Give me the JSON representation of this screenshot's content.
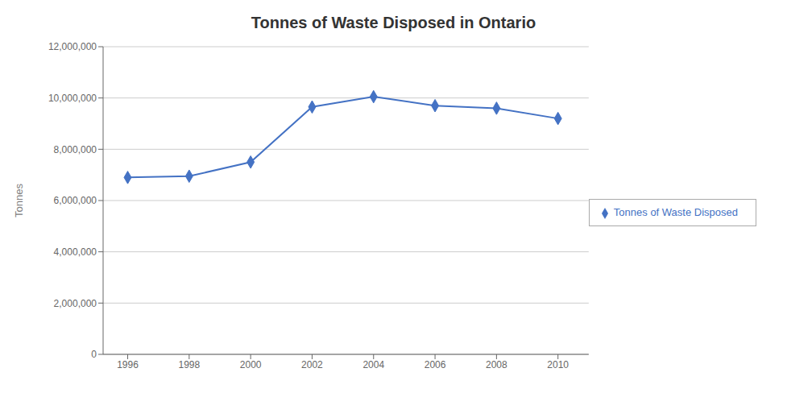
{
  "chart_data": {
    "type": "line",
    "title": "Tonnes of Waste Disposed in Ontario",
    "ylabel": "Tonnes",
    "x": [
      1996,
      1998,
      2000,
      2002,
      2004,
      2006,
      2008,
      2010
    ],
    "series": [
      {
        "name": "Tonnes of Waste Disposed",
        "color": "#4472C4",
        "marker": "diamond",
        "values": [
          6900000,
          6950000,
          7500000,
          9650000,
          10050000,
          9700000,
          9600000,
          9200000
        ]
      }
    ],
    "xlim": [
      1995.2,
      2011.0
    ],
    "xticks": [
      1996,
      1998,
      2000,
      2002,
      2004,
      2006,
      2008,
      2010
    ],
    "ylim": [
      0,
      12000000
    ],
    "yticks": [
      0,
      {
        "value": 2000000,
        "label": "2,000,000"
      },
      {
        "value": 4000000,
        "label": "4,000,000"
      },
      {
        "value": 6000000,
        "label": "6,000,000"
      },
      {
        "value": 8000000,
        "label": "8,000,000"
      },
      {
        "value": 10000000,
        "label": "10,000,000"
      },
      {
        "value": 12000000,
        "label": "12,000,000"
      }
    ],
    "grid": true,
    "legend": "right"
  }
}
